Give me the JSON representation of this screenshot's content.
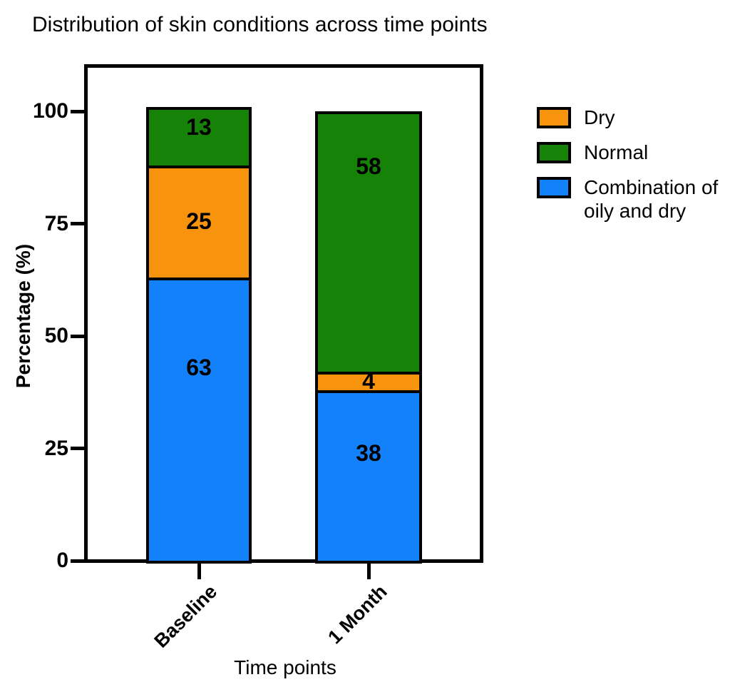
{
  "chart_data": {
    "type": "bar",
    "stacked": true,
    "title": "Distribution of skin conditions across time points",
    "xlabel": "Time points",
    "ylabel": "Percentage (%)",
    "categories": [
      "Baseline",
      "1 Month"
    ],
    "series": [
      {
        "name": "Combination of oily and dry",
        "color": "#1381FA",
        "values": [
          63,
          38
        ]
      },
      {
        "name": "Dry",
        "color": "#F8930D",
        "values": [
          25,
          4
        ]
      },
      {
        "name": "Normal",
        "color": "#178208",
        "values": [
          13,
          58
        ]
      }
    ],
    "ylim": [
      0,
      100
    ],
    "yticks": [
      0,
      25,
      50,
      75,
      100
    ],
    "grid": false,
    "bar_value_labels": true,
    "legend_position": "right"
  },
  "legend": {
    "items": [
      {
        "label": "Dry",
        "color": "#F8930D"
      },
      {
        "label": "Normal",
        "color": "#178208"
      },
      {
        "label": "Combination of oily and dry",
        "color": "#1381FA"
      }
    ]
  },
  "colors": {
    "outline": "#000000",
    "background": "#FFFFFF"
  }
}
